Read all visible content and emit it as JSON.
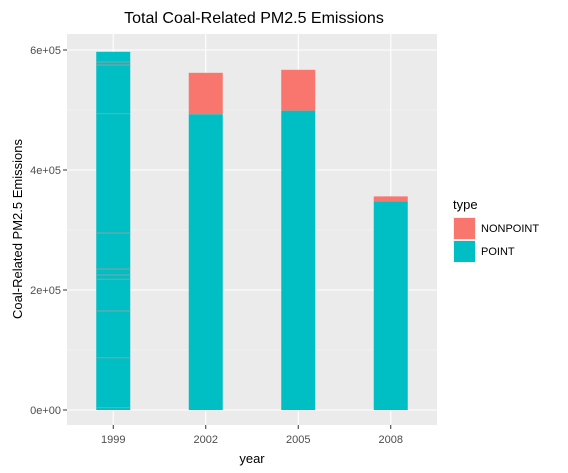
{
  "chart_data": {
    "type": "bar",
    "stacked": true,
    "title": "Total Coal-Related PM2.5 Emissions",
    "xlabel": "year",
    "ylabel": "Coal-Related PM2.5 Emissions",
    "categories": [
      "1999",
      "2002",
      "2005",
      "2008"
    ],
    "series": [
      {
        "name": "POINT",
        "color": "#00BFC4",
        "values": [
          597000,
          493000,
          499000,
          348000
        ]
      },
      {
        "name": "NONPOINT",
        "color": "#F8766D",
        "values": [
          0,
          69000,
          68000,
          8000
        ]
      }
    ],
    "ylim": [
      0,
      620000
    ],
    "yticks": [
      {
        "value": 0,
        "label": "0e+00"
      },
      {
        "value": 200000,
        "label": "2e+05"
      },
      {
        "value": 400000,
        "label": "4e+05"
      },
      {
        "value": 600000,
        "label": "6e+05"
      }
    ],
    "grid": true,
    "legend": {
      "position": "right",
      "title": "type",
      "entries": [
        {
          "name": "NONPOINT",
          "color": "#F8766D"
        },
        {
          "name": "POINT",
          "color": "#00BFC4"
        }
      ]
    },
    "segment_lines_1999": [
      4000,
      87000,
      165000,
      218000,
      225000,
      235000,
      295000,
      494000,
      575000,
      580000
    ]
  }
}
